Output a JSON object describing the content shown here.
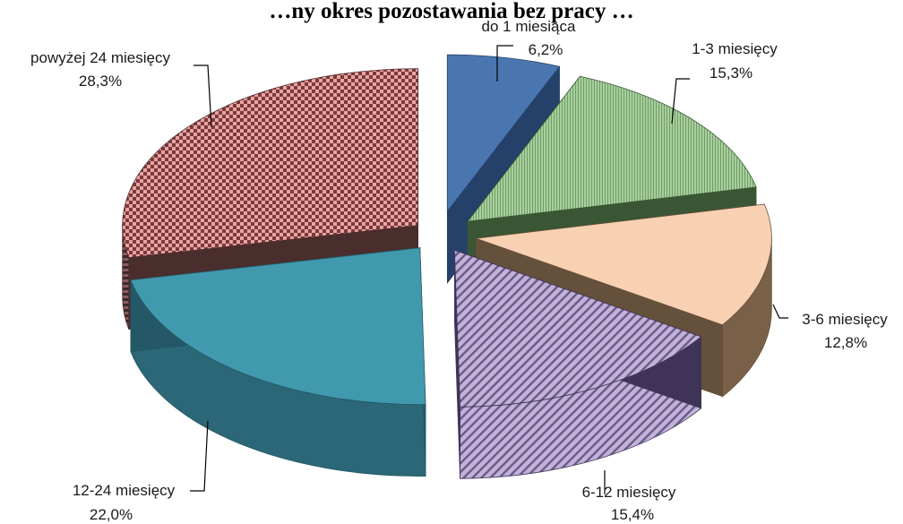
{
  "chart_data": {
    "type": "pie",
    "title": "…ny okres pozostawania bez pracy …",
    "slices": [
      {
        "label": "do 1 miesiąca",
        "value_label": "6,2%",
        "value": 6.2,
        "color": "#4a76b0"
      },
      {
        "label": "1-3 miesięcy",
        "value_label": "15,3%",
        "value": 15.3,
        "color": "#9dc494"
      },
      {
        "label": "3-6 miesięcy",
        "value_label": "12,8%",
        "value": 12.8,
        "color": "#f8d1b2"
      },
      {
        "label": "6-12 miesięcy",
        "value_label": "15,4%",
        "value": 15.4,
        "color": "#b6a3d1"
      },
      {
        "label": "12-24 miesięcy",
        "value_label": "22,0%",
        "value": 22.0,
        "color": "#4199ad"
      },
      {
        "label": "powyżej 24 miesięcy",
        "value_label": "28,3%",
        "value": 28.3,
        "color": "#e9a3a3"
      }
    ],
    "style": "3d-exploded",
    "legend": "none"
  }
}
